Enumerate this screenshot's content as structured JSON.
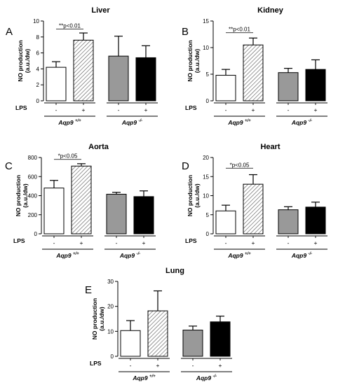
{
  "chart_data": [
    {
      "type": "bar",
      "panel": "A",
      "title": "Liver",
      "ylabel": "NO production (a.u./dw)",
      "ylim": [
        0,
        10
      ],
      "yticks": [
        0,
        2,
        4,
        6,
        8,
        10
      ],
      "categories": [
        "-",
        "+",
        "-",
        "+"
      ],
      "row_label": "LPS",
      "groups": [
        {
          "name": "Aqp9",
          "sup": "+/+"
        },
        {
          "name": "Aqp9",
          "sup": "-/-"
        }
      ],
      "values": [
        4.2,
        7.6,
        5.6,
        5.4
      ],
      "errors": [
        0.7,
        0.9,
        2.5,
        1.5
      ],
      "bar_styles": [
        "white",
        "hatched",
        "gray",
        "black"
      ],
      "annotation": {
        "text": "**p<0.01",
        "between": [
          0,
          1
        ],
        "y": 9.0
      }
    },
    {
      "type": "bar",
      "panel": "B",
      "title": "Kidney",
      "ylabel": "NO production (a.u./dw)",
      "ylim": [
        0,
        15
      ],
      "yticks": [
        0,
        5,
        10,
        15
      ],
      "categories": [
        "-",
        "+",
        "-",
        "+"
      ],
      "row_label": "LPS",
      "groups": [
        {
          "name": "Aqp9",
          "sup": "+/+"
        },
        {
          "name": "Aqp9",
          "sup": "-/-"
        }
      ],
      "values": [
        4.8,
        10.5,
        5.3,
        5.9
      ],
      "errors": [
        1.1,
        1.3,
        0.8,
        1.8
      ],
      "bar_styles": [
        "white",
        "hatched",
        "gray",
        "black"
      ],
      "annotation": {
        "text": "**p<0.01",
        "between": [
          0,
          1
        ],
        "y": 12.8
      }
    },
    {
      "type": "bar",
      "panel": "C",
      "title": "Aorta",
      "ylabel": "NO production (a.u./dw)",
      "ylim": [
        0,
        800
      ],
      "yticks": [
        0,
        200,
        400,
        600,
        800
      ],
      "categories": [
        "-",
        "+",
        "-",
        "+"
      ],
      "row_label": "LPS",
      "groups": [
        {
          "name": "Aqp9",
          "sup": "+/+"
        },
        {
          "name": "Aqp9",
          "sup": "-/-"
        }
      ],
      "values": [
        480,
        710,
        415,
        390
      ],
      "errors": [
        80,
        25,
        20,
        60
      ],
      "bar_styles": [
        "white",
        "hatched",
        "gray",
        "black"
      ],
      "annotation": {
        "text": "*p<0.05",
        "between": [
          0,
          1
        ],
        "y": 780
      }
    },
    {
      "type": "bar",
      "panel": "D",
      "title": "Heart",
      "ylabel": "NO production (a.u./dw)",
      "ylim": [
        0,
        20
      ],
      "yticks": [
        0,
        5,
        10,
        15,
        20
      ],
      "categories": [
        "-",
        "+",
        "-",
        "+"
      ],
      "row_label": "LPS",
      "groups": [
        {
          "name": "Aqp9",
          "sup": "+/+"
        },
        {
          "name": "Aqp9",
          "sup": "-/-"
        }
      ],
      "values": [
        6.0,
        13.0,
        6.3,
        7.0
      ],
      "errors": [
        1.5,
        2.5,
        0.8,
        1.3
      ],
      "bar_styles": [
        "white",
        "hatched",
        "gray",
        "black"
      ],
      "annotation": {
        "text": "*p<0.05",
        "between": [
          0,
          1
        ],
        "y": 17.2
      }
    },
    {
      "type": "bar",
      "panel": "E",
      "title": "Lung",
      "ylabel": "NO production (a.u./dw)",
      "ylim": [
        0,
        30
      ],
      "yticks": [
        0,
        10,
        20,
        30
      ],
      "categories": [
        "-",
        "+",
        "-",
        "+"
      ],
      "row_label": "LPS",
      "groups": [
        {
          "name": "Aqp9",
          "sup": "+/+"
        },
        {
          "name": "Aqp9",
          "sup": "-/-"
        }
      ],
      "values": [
        10.3,
        18.2,
        10.5,
        13.8
      ],
      "errors": [
        4.0,
        8.0,
        1.6,
        2.3
      ],
      "bar_styles": [
        "white",
        "hatched",
        "gray",
        "black"
      ],
      "annotation": null
    }
  ],
  "colors": {
    "gray_bar": "#999999",
    "black_bar": "#000000",
    "white_bar": "#ffffff",
    "hatch": "#555555"
  }
}
